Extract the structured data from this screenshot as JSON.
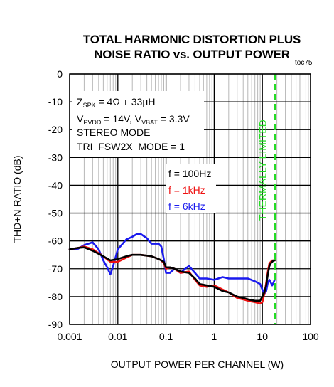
{
  "chart_data": {
    "type": "line",
    "title": [
      "TOTAL HARMONIC DISTORTION PLUS",
      "NOISE RATIO vs. OUTPUT POWER"
    ],
    "figure_id": "toc75",
    "xlabel": "OUTPUT POWER PER CHANNEL (W)",
    "ylabel": "THD+N RATIO (dB)",
    "xscale": "log",
    "xlim": [
      0.001,
      100
    ],
    "ylim": [
      -90,
      0
    ],
    "xticks": [
      "0.001",
      "0.01",
      "0.1",
      "1",
      "10",
      "100"
    ],
    "yticks": [
      "0",
      "-10",
      "-20",
      "-30",
      "-40",
      "-50",
      "-60",
      "-70",
      "-80",
      "-90"
    ],
    "grid": true,
    "conditions": [
      {
        "main": "Z",
        "sub": "SPK",
        "rest": " = 4Ω + 33µH"
      },
      {
        "parts": [
          {
            "t": "V"
          },
          {
            "t": "PVDD",
            "sub": true
          },
          {
            "t": " = 14V, V"
          },
          {
            "t": "VBAT",
            "sub": true
          },
          {
            "t": " = 3.3V"
          }
        ]
      },
      {
        "text": "STEREO MODE"
      },
      {
        "text": "TRI_FSW2X_MODE = 1"
      }
    ],
    "limit_line": {
      "x": 18,
      "label": "THERMALLY LIMITED",
      "color": "#22dd22"
    },
    "series": [
      {
        "name": "f = 100Hz",
        "color": "#000000",
        "x": [
          0.001,
          0.0015,
          0.002,
          0.003,
          0.005,
          0.007,
          0.01,
          0.015,
          0.02,
          0.03,
          0.05,
          0.07,
          0.08,
          0.09,
          0.1,
          0.12,
          0.15,
          0.2,
          0.3,
          0.4,
          0.5,
          0.7,
          1,
          1.5,
          2,
          3,
          4,
          5,
          7,
          9,
          11,
          12,
          13,
          14,
          15,
          16,
          17,
          18
        ],
        "y": [
          -63,
          -62.5,
          -62.3,
          -63.5,
          -65.5,
          -67,
          -66.5,
          -65.5,
          -65,
          -65,
          -65.5,
          -66.5,
          -67,
          -67.5,
          -69.5,
          -69.5,
          -70,
          -71,
          -71.5,
          -73.5,
          -75.5,
          -76,
          -76.5,
          -78,
          -78.5,
          -80,
          -80.5,
          -81,
          -81.5,
          -81.5,
          -78.5,
          -76,
          -72,
          -69,
          -68,
          -67.5,
          -67,
          -67
        ]
      },
      {
        "name": "f = 1kHz",
        "color": "#ee1111",
        "x": [
          0.001,
          0.0015,
          0.002,
          0.003,
          0.005,
          0.007,
          0.01,
          0.015,
          0.02,
          0.03,
          0.05,
          0.07,
          0.08,
          0.09,
          0.1,
          0.12,
          0.15,
          0.2,
          0.3,
          0.4,
          0.5,
          0.7,
          1,
          1.5,
          2,
          3,
          4,
          5,
          7,
          9,
          10,
          11,
          12,
          13,
          14,
          15,
          16,
          17,
          18
        ],
        "y": [
          -63,
          -62.5,
          -62,
          -63,
          -65.5,
          -67.5,
          -67.5,
          -66,
          -65,
          -65,
          -65.5,
          -66.5,
          -67,
          -68,
          -70,
          -69.5,
          -70,
          -71.5,
          -71,
          -74,
          -76,
          -76.5,
          -76,
          -77.5,
          -78.5,
          -80.5,
          -81,
          -81.5,
          -82,
          -82.5,
          -82,
          -79,
          -75,
          -71,
          -68,
          -67.5,
          -67,
          -67,
          -67
        ]
      },
      {
        "name": "f = 6kHz",
        "color": "#1a1aee",
        "x": [
          0.001,
          0.0015,
          0.002,
          0.003,
          0.004,
          0.005,
          0.006,
          0.007,
          0.008,
          0.01,
          0.015,
          0.02,
          0.025,
          0.03,
          0.04,
          0.05,
          0.06,
          0.07,
          0.08,
          0.09,
          0.1,
          0.12,
          0.15,
          0.2,
          0.25,
          0.3,
          0.4,
          0.5,
          0.7,
          1,
          1.5,
          2,
          3,
          4,
          5,
          7,
          9,
          10,
          11,
          12,
          13,
          14,
          15,
          16,
          17,
          18
        ],
        "y": [
          -63,
          -62.8,
          -61.5,
          -60.5,
          -63,
          -67,
          -69.5,
          -72,
          -69,
          -63,
          -59.5,
          -58.5,
          -57.5,
          -57.5,
          -59,
          -61,
          -61,
          -61,
          -62,
          -66.5,
          -71.5,
          -71.5,
          -70,
          -71.5,
          -70,
          -69,
          -71.5,
          -73.5,
          -73.5,
          -74,
          -73,
          -73.5,
          -73.5,
          -73.5,
          -73.5,
          -74.5,
          -75.5,
          -77.5,
          -79,
          -78,
          -75,
          -74,
          -75,
          -76,
          -75,
          -74
        ]
      }
    ]
  }
}
